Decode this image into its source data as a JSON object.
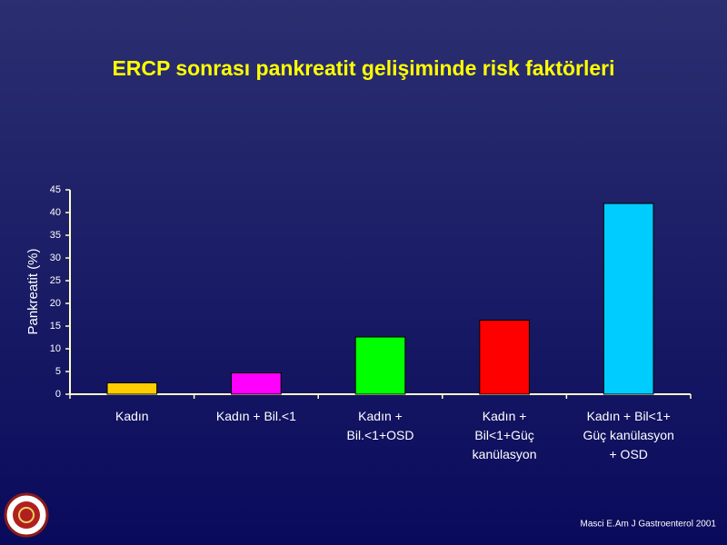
{
  "chart_data": {
    "type": "bar",
    "title": "ERCP sonrası pankreatit gelişiminde  risk faktörleri",
    "y_label": "Pankreatit  (%)",
    "source": "Masci E.Am J Gastroenterol 2001",
    "categories": [
      "Kadın",
      "Kadın + Bil.<1",
      "Kadın +\nBil.<1+OSD",
      "Kadın +\nBil<1+Güç\nkanülasyon",
      "Kadın + Bil<1+\nGüç kanülasyon\n+ OSD"
    ],
    "values": [
      2.5,
      4.7,
      12.6,
      16.3,
      42
    ],
    "colors": [
      "#ffcc00",
      "#ff00ff",
      "#00ff00",
      "#ff0000",
      "#00ccff"
    ],
    "ylim": [
      0,
      45
    ],
    "yticks": [
      0,
      5,
      10,
      15,
      20,
      25,
      30,
      35,
      40,
      45
    ]
  }
}
